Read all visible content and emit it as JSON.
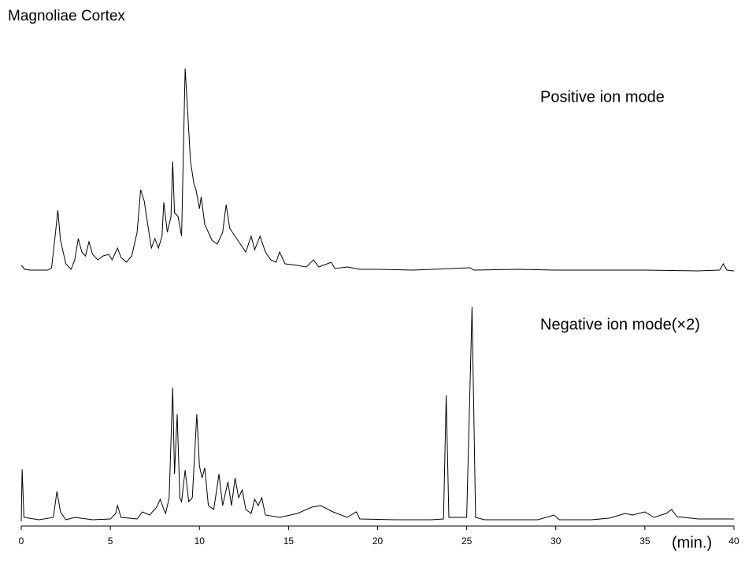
{
  "chart_data": [
    {
      "type": "line",
      "title": "Magnoliae  Cortex",
      "x": [
        0,
        0.2,
        0.5,
        1.5,
        1.7,
        1.9,
        2.05,
        2.2,
        2.5,
        2.8,
        3.0,
        3.2,
        3.4,
        3.6,
        3.8,
        4.0,
        4.3,
        4.6,
        4.9,
        5.1,
        5.4,
        5.6,
        5.9,
        6.2,
        6.5,
        6.7,
        6.9,
        7.1,
        7.3,
        7.5,
        7.7,
        7.9,
        8.0,
        8.2,
        8.4,
        8.5,
        8.6,
        8.8,
        9.0,
        9.2,
        9.35,
        9.5,
        9.7,
        9.8,
        10.0,
        10.1,
        10.3,
        10.5,
        10.7,
        11.0,
        11.3,
        11.5,
        11.7,
        12.0,
        12.3,
        12.6,
        12.9,
        13.1,
        13.4,
        13.7,
        14.0,
        14.3,
        14.5,
        14.8,
        15.5,
        16.0,
        16.4,
        16.7,
        17.4,
        17.6,
        18.3,
        19,
        20,
        22,
        25.2,
        25.4,
        27.9,
        30,
        34,
        35,
        38,
        39.2,
        39.4,
        39.6,
        40
      ],
      "series": [
        {
          "name": "Positive ion mode",
          "color": "#000000",
          "values": [
            8,
            3,
            2,
            2,
            5,
            45,
            78,
            40,
            10,
            3,
            15,
            42,
            25,
            20,
            38,
            22,
            15,
            20,
            22,
            15,
            30,
            18,
            12,
            20,
            50,
            104,
            90,
            60,
            30,
            42,
            30,
            45,
            88,
            50,
            70,
            140,
            75,
            70,
            45,
            258,
            200,
            140,
            110,
            105,
            80,
            95,
            60,
            50,
            40,
            35,
            50,
            85,
            55,
            45,
            35,
            25,
            45,
            28,
            45,
            25,
            15,
            12,
            25,
            10,
            8,
            6,
            15,
            6,
            12,
            4,
            6,
            3,
            3,
            2,
            5,
            2,
            3,
            2,
            2,
            2,
            1,
            2,
            10,
            2,
            1
          ]
        }
      ],
      "xlim": [
        0,
        40
      ],
      "ylim": [
        0,
        300
      ]
    },
    {
      "type": "line",
      "x": [
        0,
        0.05,
        0.15,
        1.0,
        1.8,
        2.0,
        2.2,
        2.5,
        3,
        4,
        5,
        5.3,
        5.4,
        5.6,
        6.5,
        6.8,
        7.2,
        7.6,
        7.8,
        8.0,
        8.1,
        8.3,
        8.5,
        8.6,
        8.75,
        8.9,
        9.0,
        9.2,
        9.4,
        9.6,
        9.85,
        10.0,
        10.15,
        10.3,
        10.5,
        10.8,
        11.1,
        11.3,
        11.6,
        11.8,
        12.0,
        12.2,
        12.4,
        12.6,
        12.9,
        13.1,
        13.3,
        13.5,
        13.7,
        14.5,
        15.5,
        16.3,
        16.8,
        17.5,
        18.3,
        18.8,
        19.0,
        21,
        23,
        23.7,
        23.85,
        24.0,
        25.0,
        25.3,
        25.5,
        26,
        29,
        29.9,
        30.2,
        32,
        33,
        33.9,
        34.3,
        35.0,
        35.5,
        36.2,
        36.5,
        36.8,
        38,
        40
      ],
      "series": [
        {
          "name": "Negative ion mode(×2)",
          "color": "#000000",
          "values": [
            0,
            66,
            5,
            2,
            5,
            38,
            12,
            2,
            5,
            2,
            3,
            10,
            20,
            5,
            3,
            12,
            8,
            18,
            28,
            15,
            10,
            30,
            170,
            60,
            136,
            30,
            25,
            65,
            25,
            30,
            136,
            70,
            55,
            68,
            20,
            15,
            60,
            20,
            50,
            20,
            55,
            30,
            40,
            15,
            10,
            28,
            20,
            30,
            8,
            5,
            10,
            18,
            20,
            12,
            5,
            12,
            3,
            2,
            2,
            3,
            160,
            5,
            5,
            272,
            5,
            2,
            2,
            8,
            2,
            2,
            4,
            10,
            8,
            12,
            5,
            10,
            15,
            6,
            3,
            3
          ]
        }
      ],
      "xlim": [
        0,
        40
      ],
      "ylim": [
        0,
        300
      ],
      "xticks": [
        0,
        5,
        10,
        15,
        20,
        25,
        30,
        35,
        40
      ],
      "xlabel": "(min.)"
    }
  ]
}
